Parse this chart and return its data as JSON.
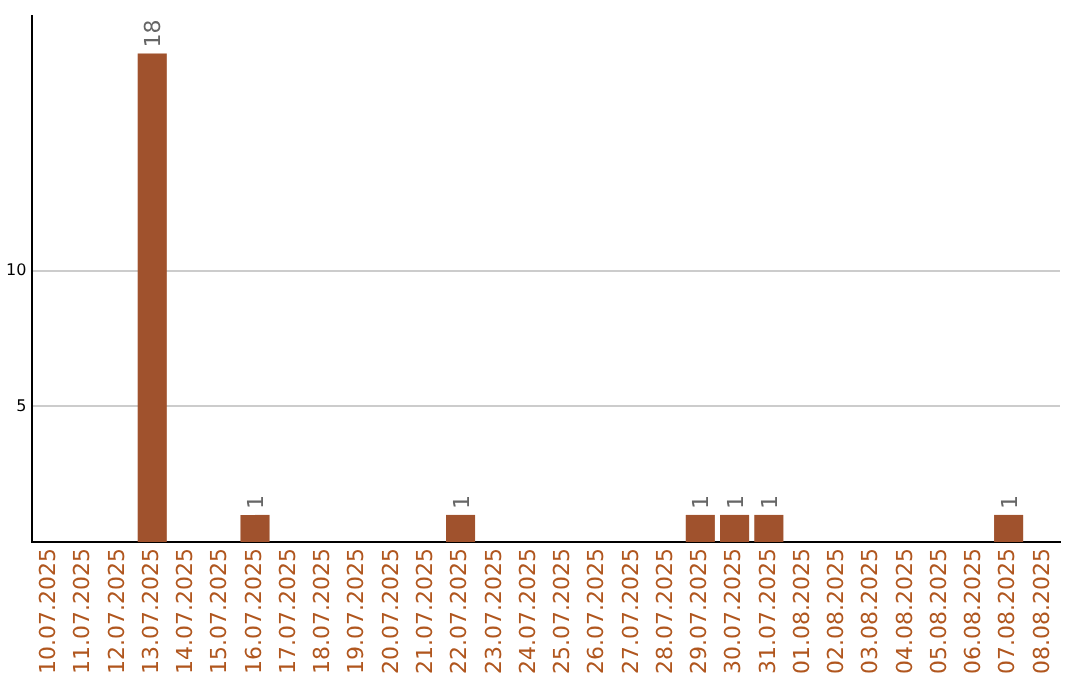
{
  "chart_data": {
    "type": "bar",
    "categories": [
      "10.07.2025",
      "11.07.2025",
      "12.07.2025",
      "13.07.2025",
      "14.07.2025",
      "15.07.2025",
      "16.07.2025",
      "17.07.2025",
      "18.07.2025",
      "19.07.2025",
      "20.07.2025",
      "21.07.2025",
      "22.07.2025",
      "23.07.2025",
      "24.07.2025",
      "25.07.2025",
      "26.07.2025",
      "27.07.2025",
      "28.07.2025",
      "29.07.2025",
      "30.07.2025",
      "31.07.2025",
      "01.08.2025",
      "02.08.2025",
      "03.08.2025",
      "04.08.2025",
      "05.08.2025",
      "06.08.2025",
      "07.08.2025",
      "08.08.2025"
    ],
    "values": [
      0,
      0,
      0,
      18,
      0,
      0,
      1,
      0,
      0,
      0,
      0,
      0,
      1,
      0,
      0,
      0,
      0,
      0,
      0,
      1,
      1,
      1,
      0,
      0,
      0,
      0,
      0,
      0,
      1,
      0
    ],
    "value_labels": [
      null,
      null,
      null,
      "18",
      null,
      null,
      "1",
      null,
      null,
      null,
      null,
      null,
      "1",
      null,
      null,
      null,
      null,
      null,
      null,
      "1",
      "1",
      "1",
      null,
      null,
      null,
      null,
      null,
      null,
      "1",
      null
    ],
    "color": "#a0522d",
    "ylim": [
      0,
      19.4
    ],
    "yticks": [
      5,
      10
    ],
    "grid": "y",
    "legend": false
  }
}
